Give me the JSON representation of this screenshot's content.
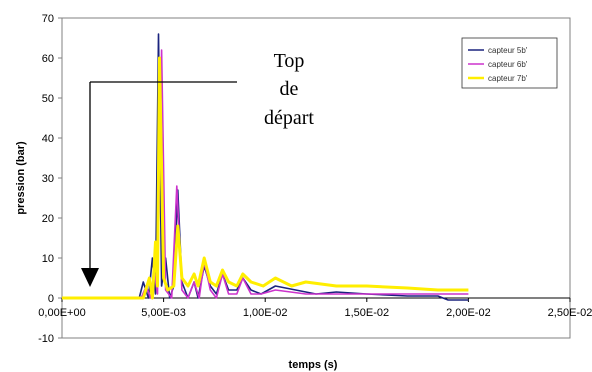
{
  "chart_data": {
    "type": "line",
    "xlabel": "temps (s)",
    "ylabel": "pression (bar)",
    "xlim": [
      0,
      0.025
    ],
    "ylim": [
      -10,
      70
    ],
    "x_ticks": [
      {
        "value": 0,
        "label": "0,00E+00"
      },
      {
        "value": 0.005,
        "label": "5,00E-03"
      },
      {
        "value": 0.01,
        "label": "1,00E-02"
      },
      {
        "value": 0.015,
        "label": "1,50E-02"
      },
      {
        "value": 0.02,
        "label": "2,00E-02"
      },
      {
        "value": 0.025,
        "label": "2,50E-02"
      }
    ],
    "y_ticks": [
      {
        "value": 70,
        "label": "70"
      },
      {
        "value": 60,
        "label": "60"
      },
      {
        "value": 50,
        "label": "50"
      },
      {
        "value": 40,
        "label": "40"
      },
      {
        "value": 30,
        "label": "30"
      },
      {
        "value": 20,
        "label": "20"
      },
      {
        "value": 10,
        "label": "10"
      },
      {
        "value": 0,
        "label": "0"
      },
      {
        "value": -10,
        "label": "-10"
      }
    ],
    "legend_position": "top-right",
    "series": [
      {
        "name": "capteur 5b'",
        "color": "#1a237e",
        "points": [
          [
            0,
            0
          ],
          [
            0.0038,
            0
          ],
          [
            0.004,
            4
          ],
          [
            0.00425,
            0
          ],
          [
            0.00445,
            10
          ],
          [
            0.0046,
            1
          ],
          [
            0.00475,
            66
          ],
          [
            0.0049,
            3
          ],
          [
            0.0051,
            10
          ],
          [
            0.0053,
            0
          ],
          [
            0.0055,
            3
          ],
          [
            0.0057,
            27
          ],
          [
            0.0059,
            4
          ],
          [
            0.0062,
            0
          ],
          [
            0.0065,
            4
          ],
          [
            0.0067,
            0
          ],
          [
            0.007,
            8
          ],
          [
            0.0073,
            3
          ],
          [
            0.0076,
            1
          ],
          [
            0.0079,
            6
          ],
          [
            0.0082,
            2
          ],
          [
            0.0086,
            2
          ],
          [
            0.0089,
            5
          ],
          [
            0.0093,
            2
          ],
          [
            0.0098,
            1
          ],
          [
            0.0105,
            3
          ],
          [
            0.0115,
            2
          ],
          [
            0.0125,
            1
          ],
          [
            0.0135,
            1.5
          ],
          [
            0.015,
            1
          ],
          [
            0.017,
            0.5
          ],
          [
            0.0185,
            0.5
          ],
          [
            0.019,
            -0.5
          ],
          [
            0.02,
            -0.5
          ]
        ]
      },
      {
        "name": "capteur 6b'",
        "color": "#cc33cc",
        "points": [
          [
            0,
            0
          ],
          [
            0.0039,
            0
          ],
          [
            0.00415,
            3
          ],
          [
            0.00435,
            0
          ],
          [
            0.00455,
            6
          ],
          [
            0.0047,
            1
          ],
          [
            0.0049,
            62
          ],
          [
            0.0051,
            2
          ],
          [
            0.0054,
            0
          ],
          [
            0.00565,
            28
          ],
          [
            0.0059,
            2
          ],
          [
            0.0062,
            0
          ],
          [
            0.0065,
            4
          ],
          [
            0.00675,
            0
          ],
          [
            0.007,
            9
          ],
          [
            0.0073,
            2
          ],
          [
            0.0076,
            0
          ],
          [
            0.0079,
            6
          ],
          [
            0.0082,
            1
          ],
          [
            0.0086,
            1
          ],
          [
            0.0089,
            5
          ],
          [
            0.0093,
            1
          ],
          [
            0.0098,
            1
          ],
          [
            0.0105,
            2
          ],
          [
            0.012,
            1
          ],
          [
            0.014,
            1
          ],
          [
            0.016,
            1
          ],
          [
            0.018,
            1
          ],
          [
            0.02,
            1
          ]
        ]
      },
      {
        "name": "capteur 7b'",
        "color": "#ffee00",
        "points": [
          [
            0,
            0
          ],
          [
            0.004,
            0
          ],
          [
            0.0043,
            5
          ],
          [
            0.00445,
            0
          ],
          [
            0.0046,
            14
          ],
          [
            0.0047,
            3
          ],
          [
            0.0048,
            60
          ],
          [
            0.005,
            5
          ],
          [
            0.0052,
            2
          ],
          [
            0.0055,
            3
          ],
          [
            0.0057,
            18
          ],
          [
            0.0059,
            5
          ],
          [
            0.0062,
            3
          ],
          [
            0.0065,
            6
          ],
          [
            0.0067,
            3
          ],
          [
            0.007,
            10
          ],
          [
            0.0073,
            4
          ],
          [
            0.0076,
            3
          ],
          [
            0.0079,
            7
          ],
          [
            0.0082,
            4
          ],
          [
            0.0086,
            3
          ],
          [
            0.0089,
            6
          ],
          [
            0.0093,
            4
          ],
          [
            0.0099,
            3
          ],
          [
            0.0105,
            5
          ],
          [
            0.0113,
            3
          ],
          [
            0.012,
            4
          ],
          [
            0.0135,
            3
          ],
          [
            0.015,
            3
          ],
          [
            0.017,
            2.5
          ],
          [
            0.0185,
            2
          ],
          [
            0.02,
            2
          ]
        ]
      }
    ],
    "annotation": {
      "lines": [
        "Top",
        "de",
        "départ"
      ]
    }
  }
}
